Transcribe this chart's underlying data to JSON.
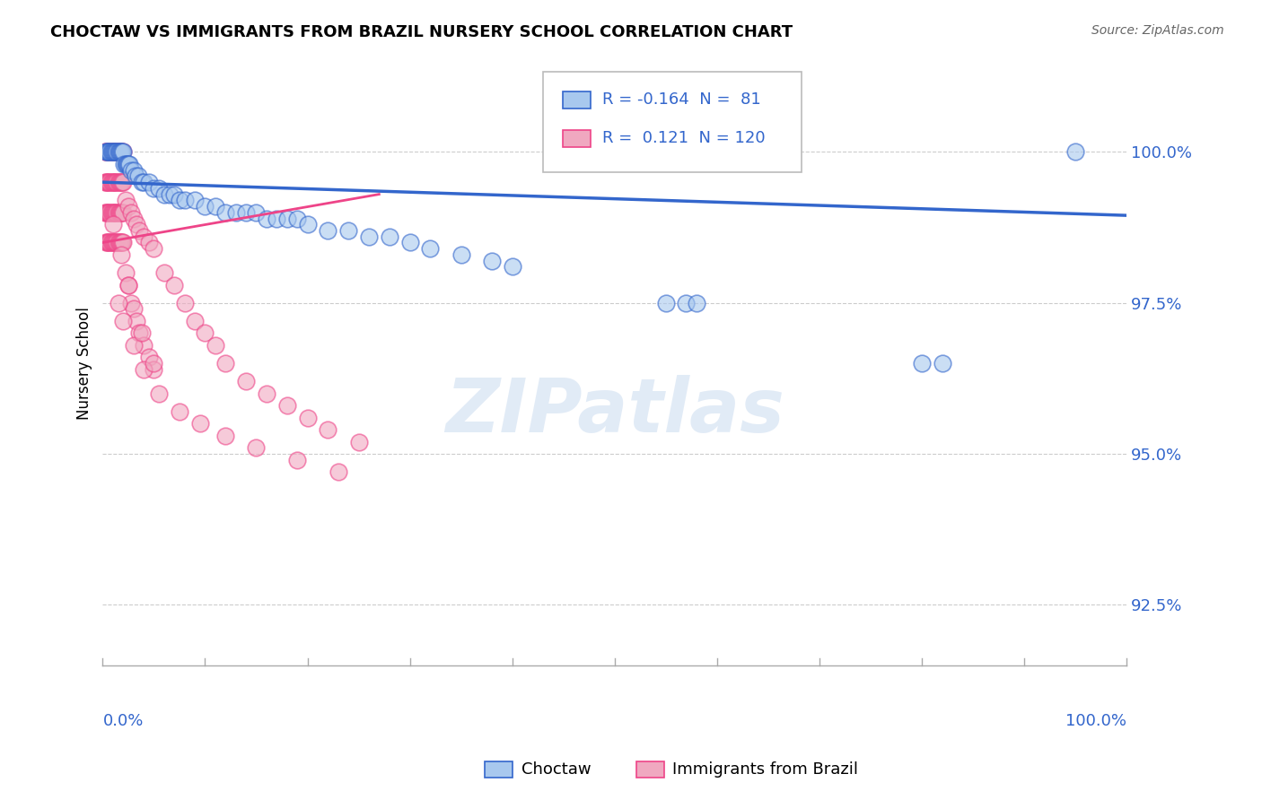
{
  "title": "CHOCTAW VS IMMIGRANTS FROM BRAZIL NURSERY SCHOOL CORRELATION CHART",
  "source": "Source: ZipAtlas.com",
  "ylabel": "Nursery School",
  "yticks": [
    92.5,
    95.0,
    97.5,
    100.0
  ],
  "ytick_labels": [
    "92.5%",
    "95.0%",
    "97.5%",
    "100.0%"
  ],
  "xlim": [
    0.0,
    100.0
  ],
  "ylim": [
    91.5,
    101.5
  ],
  "legend_label1": "Choctaw",
  "legend_label2": "Immigrants from Brazil",
  "R1": -0.164,
  "N1": 81,
  "R2": 0.121,
  "N2": 120,
  "color_blue": "#A8C8EE",
  "color_pink": "#F0A8C0",
  "color_blue_dark": "#3366CC",
  "color_pink_dark": "#EE4488",
  "blue_line_x": [
    0.0,
    100.0
  ],
  "blue_line_y": [
    99.5,
    98.95
  ],
  "pink_line_x": [
    0.0,
    27.0
  ],
  "pink_line_y": [
    98.5,
    99.3
  ],
  "blue_x": [
    0.3,
    0.4,
    0.5,
    0.6,
    0.7,
    0.8,
    0.9,
    1.0,
    1.1,
    1.2,
    1.3,
    1.4,
    1.5,
    1.6,
    1.7,
    1.8,
    1.9,
    2.0,
    2.1,
    2.2,
    2.3,
    2.4,
    2.5,
    2.6,
    2.8,
    3.0,
    3.2,
    3.5,
    3.8,
    4.0,
    4.5,
    5.0,
    5.5,
    6.0,
    6.5,
    7.0,
    7.5,
    8.0,
    9.0,
    10.0,
    11.0,
    12.0,
    13.0,
    14.0,
    15.0,
    16.0,
    17.0,
    18.0,
    19.0,
    20.0,
    22.0,
    24.0,
    26.0,
    28.0,
    30.0,
    32.0,
    35.0,
    38.0,
    40.0,
    55.0,
    57.0,
    58.0,
    80.0,
    82.0,
    95.0
  ],
  "blue_y": [
    100.0,
    100.0,
    100.0,
    100.0,
    100.0,
    100.0,
    100.0,
    100.0,
    100.0,
    100.0,
    100.0,
    100.0,
    100.0,
    100.0,
    100.0,
    100.0,
    100.0,
    100.0,
    99.8,
    99.8,
    99.8,
    99.8,
    99.8,
    99.8,
    99.7,
    99.7,
    99.6,
    99.6,
    99.5,
    99.5,
    99.5,
    99.4,
    99.4,
    99.3,
    99.3,
    99.3,
    99.2,
    99.2,
    99.2,
    99.1,
    99.1,
    99.0,
    99.0,
    99.0,
    99.0,
    98.9,
    98.9,
    98.9,
    98.9,
    98.8,
    98.7,
    98.7,
    98.6,
    98.6,
    98.5,
    98.4,
    98.3,
    98.2,
    98.1,
    97.5,
    97.5,
    97.5,
    96.5,
    96.5,
    100.0
  ],
  "pink_x": [
    0.2,
    0.3,
    0.4,
    0.5,
    0.6,
    0.7,
    0.8,
    0.9,
    1.0,
    1.1,
    1.2,
    1.3,
    1.4,
    1.5,
    1.6,
    1.7,
    1.8,
    1.9,
    2.0,
    0.2,
    0.3,
    0.4,
    0.5,
    0.6,
    0.7,
    0.8,
    0.9,
    1.0,
    1.1,
    1.2,
    1.3,
    1.4,
    1.5,
    1.6,
    1.7,
    1.8,
    1.9,
    2.0,
    0.2,
    0.3,
    0.4,
    0.5,
    0.6,
    0.7,
    0.8,
    0.9,
    1.0,
    1.1,
    1.2,
    1.3,
    1.4,
    1.5,
    1.6,
    1.7,
    1.8,
    1.9,
    2.0,
    0.3,
    0.4,
    0.5,
    0.6,
    0.7,
    0.8,
    0.9,
    1.0,
    1.1,
    1.2,
    1.3,
    1.4,
    1.5,
    1.6,
    1.7,
    1.8,
    1.9,
    2.0,
    2.2,
    2.5,
    2.8,
    3.0,
    3.3,
    3.6,
    4.0,
    4.5,
    5.0,
    2.2,
    2.5,
    2.8,
    3.0,
    3.3,
    3.6,
    4.0,
    4.5,
    5.0,
    6.0,
    7.0,
    8.0,
    9.0,
    10.0,
    11.0,
    12.0,
    14.0,
    16.0,
    18.0,
    20.0,
    22.0,
    25.0,
    1.5,
    2.0,
    3.0,
    4.0,
    5.5,
    7.5,
    9.5,
    12.0,
    15.0,
    19.0,
    23.0,
    1.0,
    1.8,
    2.5,
    3.8,
    5.0
  ],
  "pink_y": [
    100.0,
    100.0,
    100.0,
    100.0,
    100.0,
    100.0,
    100.0,
    100.0,
    100.0,
    100.0,
    100.0,
    100.0,
    100.0,
    100.0,
    100.0,
    100.0,
    100.0,
    100.0,
    100.0,
    99.5,
    99.5,
    99.5,
    99.5,
    99.5,
    99.5,
    99.5,
    99.5,
    99.5,
    99.5,
    99.5,
    99.5,
    99.5,
    99.5,
    99.5,
    99.5,
    99.5,
    99.5,
    99.5,
    99.0,
    99.0,
    99.0,
    99.0,
    99.0,
    99.0,
    99.0,
    99.0,
    99.0,
    99.0,
    99.0,
    99.0,
    99.0,
    99.0,
    99.0,
    99.0,
    99.0,
    99.0,
    99.0,
    98.5,
    98.5,
    98.5,
    98.5,
    98.5,
    98.5,
    98.5,
    98.5,
    98.5,
    98.5,
    98.5,
    98.5,
    98.5,
    98.5,
    98.5,
    98.5,
    98.5,
    98.5,
    99.2,
    99.1,
    99.0,
    98.9,
    98.8,
    98.7,
    98.6,
    98.5,
    98.4,
    98.0,
    97.8,
    97.5,
    97.4,
    97.2,
    97.0,
    96.8,
    96.6,
    96.4,
    98.0,
    97.8,
    97.5,
    97.2,
    97.0,
    96.8,
    96.5,
    96.2,
    96.0,
    95.8,
    95.6,
    95.4,
    95.2,
    97.5,
    97.2,
    96.8,
    96.4,
    96.0,
    95.7,
    95.5,
    95.3,
    95.1,
    94.9,
    94.7,
    98.8,
    98.3,
    97.8,
    97.0,
    96.5
  ]
}
